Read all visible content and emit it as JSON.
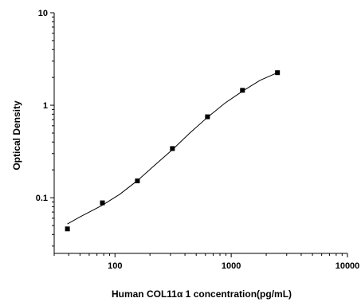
{
  "chart_data": {
    "type": "scatter",
    "xlabel": "Human COL11α 1 concentration(pg/mL)",
    "ylabel": "Optical Density",
    "x_scale": "log",
    "y_scale": "log",
    "xlim": [
      30,
      10000
    ],
    "ylim": [
      0.025,
      10
    ],
    "x_ticks": [
      100,
      1000,
      10000
    ],
    "y_ticks": [
      0.1,
      1,
      10
    ],
    "x_tick_labels": [
      "100",
      "1000",
      "10000"
    ],
    "y_tick_labels": [
      "0.1",
      "1",
      "10"
    ],
    "grid": false,
    "legend": "none",
    "series": [
      {
        "x": [
          39,
          78,
          156,
          312,
          625,
          1250,
          2500
        ],
        "y": [
          0.046,
          0.088,
          0.152,
          0.34,
          0.75,
          1.45,
          2.25
        ]
      }
    ],
    "fit_curve": {
      "x": [
        39,
        50,
        78,
        110,
        156,
        220,
        312,
        440,
        625,
        880,
        1250,
        1770,
        2500
      ],
      "y": [
        0.052,
        0.062,
        0.083,
        0.109,
        0.153,
        0.225,
        0.33,
        0.5,
        0.74,
        1.05,
        1.42,
        1.86,
        2.25
      ]
    },
    "colors": {
      "marker": "#000000",
      "line": "#000000"
    }
  }
}
